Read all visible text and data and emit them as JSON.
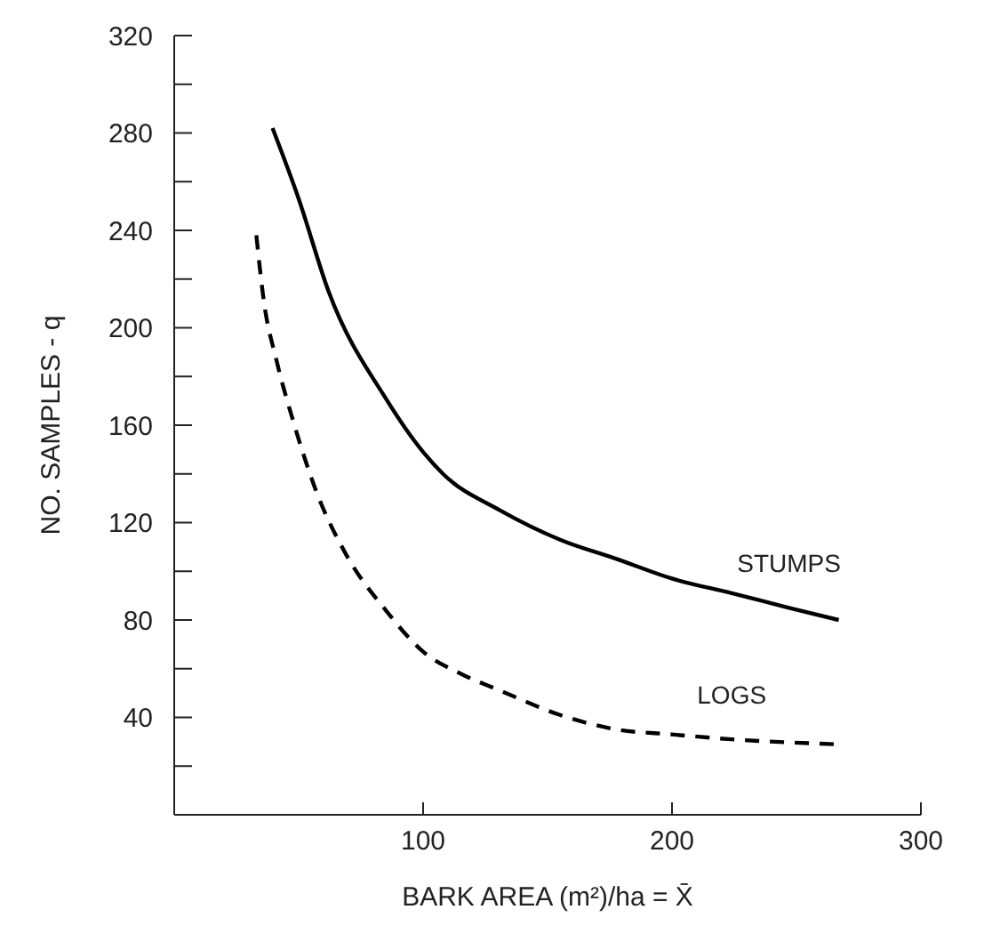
{
  "chart_data": {
    "type": "line",
    "xlabel": "BARK AREA (m²)/ha = X̄",
    "ylabel": "NO. SAMPLES - q",
    "xlim": [
      0,
      300
    ],
    "xticks": [
      100,
      200,
      300
    ],
    "ylim": [
      0,
      320
    ],
    "yticks": [
      {
        "value": 20,
        "label": null
      },
      40,
      {
        "value": 60,
        "label": null
      },
      80,
      {
        "value": 100,
        "label": null
      },
      120,
      {
        "value": 140,
        "label": null
      },
      160,
      {
        "value": 180,
        "label": null
      },
      200,
      {
        "value": 220,
        "label": null
      },
      240,
      {
        "value": 260,
        "label": null
      },
      280,
      {
        "value": 300,
        "label": null
      },
      320
    ],
    "grid": false,
    "legend": false,
    "marker": "none",
    "series": [
      {
        "name": "STUMPS",
        "color": "#000000",
        "line_style": "solid",
        "x": [
          39.5,
          50,
          62,
          85,
          100,
          108,
          131,
          155,
          178,
          200,
          224,
          247,
          267
        ],
        "values": [
          282,
          253,
          215,
          171,
          149,
          140,
          125,
          113,
          105,
          97,
          91,
          85,
          80
        ]
      },
      {
        "name": "LOGS",
        "color": "#000000",
        "line_style": "dashed",
        "x": [
          33,
          36,
          41,
          48,
          57,
          69,
          85,
          100,
          115,
          131,
          155,
          178,
          200,
          224,
          265
        ],
        "values": [
          238,
          211,
          187,
          161,
          133,
          107,
          84,
          67,
          58,
          51,
          41,
          35,
          33,
          31,
          29
        ]
      }
    ]
  }
}
